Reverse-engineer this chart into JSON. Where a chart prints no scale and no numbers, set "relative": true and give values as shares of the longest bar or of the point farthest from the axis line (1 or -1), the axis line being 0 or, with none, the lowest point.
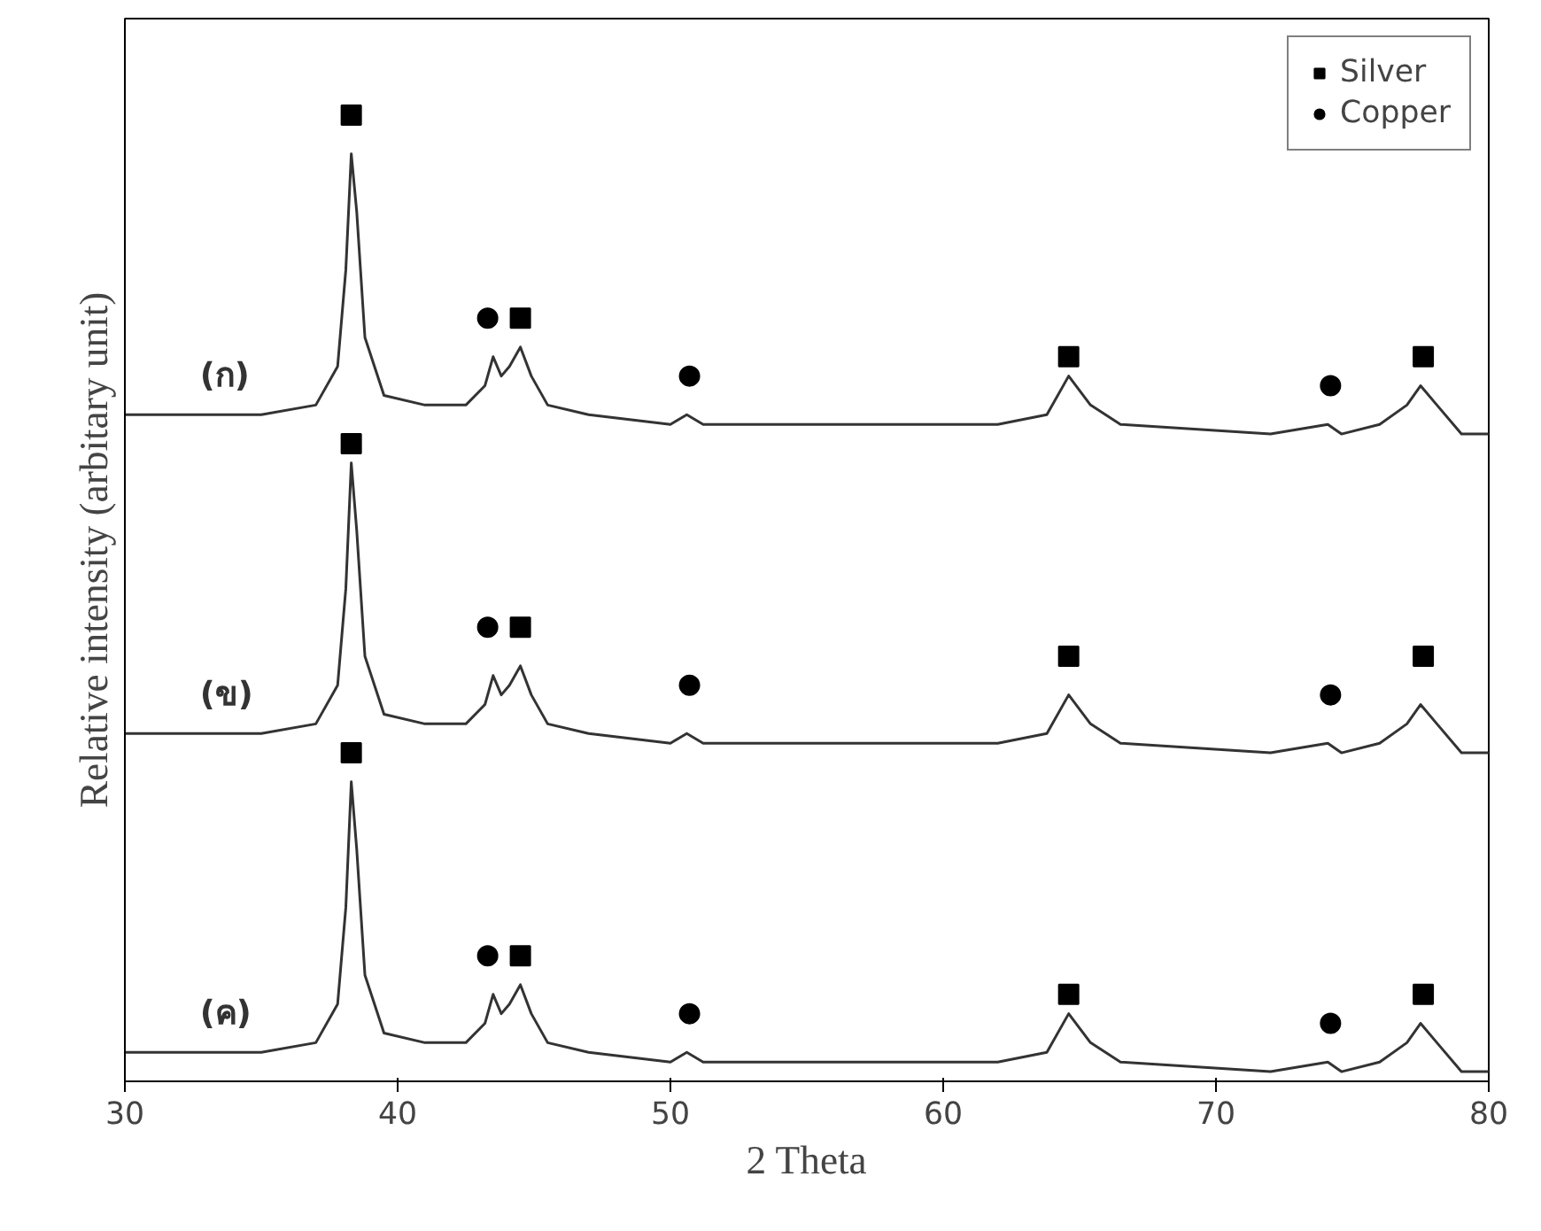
{
  "chart_data": {
    "type": "line",
    "relative": true,
    "xlabel": "2 Theta",
    "ylabel": "Relative intensity (arbitary unit)",
    "xlim": [
      30,
      80
    ],
    "xticks": [
      30,
      40,
      50,
      60,
      70,
      80
    ],
    "tick_labels": "x",
    "grid": false,
    "legend": "top right",
    "line_style": "solid",
    "marker": "none",
    "x": [
      30,
      33,
      34.5,
      35,
      37,
      37.8,
      38.1,
      38.3,
      38.5,
      38.8,
      39.5,
      41,
      42.5,
      43.2,
      43.5,
      43.8,
      44.1,
      44.5,
      44.9,
      45.5,
      47,
      50,
      50.6,
      51.2,
      55,
      62,
      63.8,
      64.6,
      65.4,
      66.5,
      72,
      74.1,
      74.6,
      76,
      77.0,
      77.5,
      78.1,
      79,
      80
    ],
    "series": [
      {
        "name": "(ก)",
        "color": "#333333",
        "values": [
          0.69,
          0.69,
          0.69,
          0.69,
          0.7,
          0.74,
          0.84,
          0.96,
          0.9,
          0.77,
          0.71,
          0.7,
          0.7,
          0.72,
          0.75,
          0.73,
          0.74,
          0.76,
          0.73,
          0.7,
          0.69,
          0.68,
          0.69,
          0.68,
          0.68,
          0.68,
          0.69,
          0.73,
          0.7,
          0.68,
          0.67,
          0.68,
          0.67,
          0.68,
          0.7,
          0.72,
          0.7,
          0.67,
          0.67
        ]
      },
      {
        "name": "(ข)",
        "color": "#333333",
        "values": [
          0.36,
          0.36,
          0.36,
          0.36,
          0.37,
          0.41,
          0.51,
          0.64,
          0.57,
          0.44,
          0.38,
          0.37,
          0.37,
          0.39,
          0.42,
          0.4,
          0.41,
          0.43,
          0.4,
          0.37,
          0.36,
          0.35,
          0.36,
          0.35,
          0.35,
          0.35,
          0.36,
          0.4,
          0.37,
          0.35,
          0.34,
          0.35,
          0.34,
          0.35,
          0.37,
          0.39,
          0.37,
          0.34,
          0.34
        ]
      },
      {
        "name": "(ค)",
        "color": "#333333",
        "values": [
          0.03,
          0.03,
          0.03,
          0.03,
          0.04,
          0.08,
          0.18,
          0.31,
          0.24,
          0.11,
          0.05,
          0.04,
          0.04,
          0.06,
          0.09,
          0.07,
          0.08,
          0.1,
          0.07,
          0.04,
          0.03,
          0.02,
          0.03,
          0.02,
          0.02,
          0.02,
          0.03,
          0.07,
          0.04,
          0.02,
          0.01,
          0.02,
          0.01,
          0.02,
          0.04,
          0.06,
          0.04,
          0.01,
          0.01
        ]
      },
      {
        "name": "Silver",
        "type": "scatter",
        "marker": "square",
        "color": "#000000",
        "x": [
          38.3,
          44.5,
          64.6,
          77.6,
          38.3,
          44.5,
          64.6,
          77.6,
          38.3,
          44.5,
          64.6,
          77.6
        ],
        "values": [
          1.0,
          0.79,
          0.75,
          0.75,
          0.66,
          0.47,
          0.44,
          0.44,
          0.34,
          0.13,
          0.09,
          0.09
        ]
      },
      {
        "name": "Copper",
        "type": "scatter",
        "marker": "circle",
        "color": "#000000",
        "x": [
          43.3,
          50.7,
          74.2,
          43.3,
          50.7,
          74.2,
          43.3,
          50.7,
          74.2
        ],
        "values": [
          0.79,
          0.73,
          0.72,
          0.47,
          0.41,
          0.4,
          0.13,
          0.07,
          0.06
        ]
      }
    ]
  }
}
